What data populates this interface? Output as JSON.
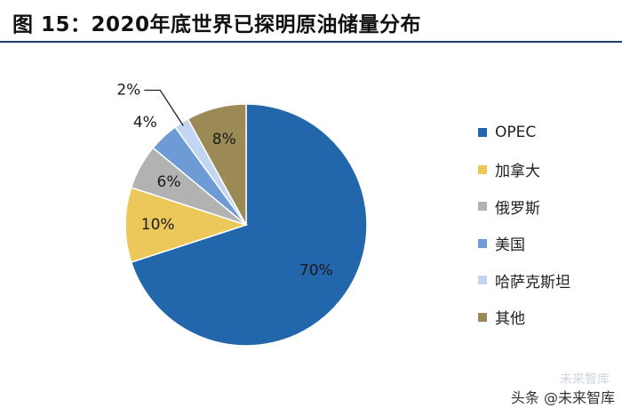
{
  "header": {
    "title": "图 15：2020年底世界已探明原油储量分布"
  },
  "chart_data": {
    "type": "pie",
    "title": "2020年底世界已探明原油储量分布",
    "start_angle_deg": 0,
    "direction": "clockwise",
    "slices": [
      {
        "name": "OPEC",
        "value": 70,
        "label": "70%",
        "color": "#2266ac"
      },
      {
        "name": "加拿大",
        "value": 10,
        "label": "10%",
        "color": "#ecc85a"
      },
      {
        "name": "俄罗斯",
        "value": 6,
        "label": "6%",
        "color": "#b2b2b2"
      },
      {
        "name": "美国",
        "value": 4,
        "label": "4%",
        "color": "#6e9bd6"
      },
      {
        "name": "哈萨克斯坦",
        "value": 2,
        "label": "2%",
        "color": "#c3d6f1"
      },
      {
        "name": "其他",
        "value": 8,
        "label": "8%",
        "color": "#9b8a55"
      }
    ],
    "legend_position": "right"
  },
  "watermark": {
    "text": "头条 @未来智库",
    "faint_text": "未来智库"
  }
}
